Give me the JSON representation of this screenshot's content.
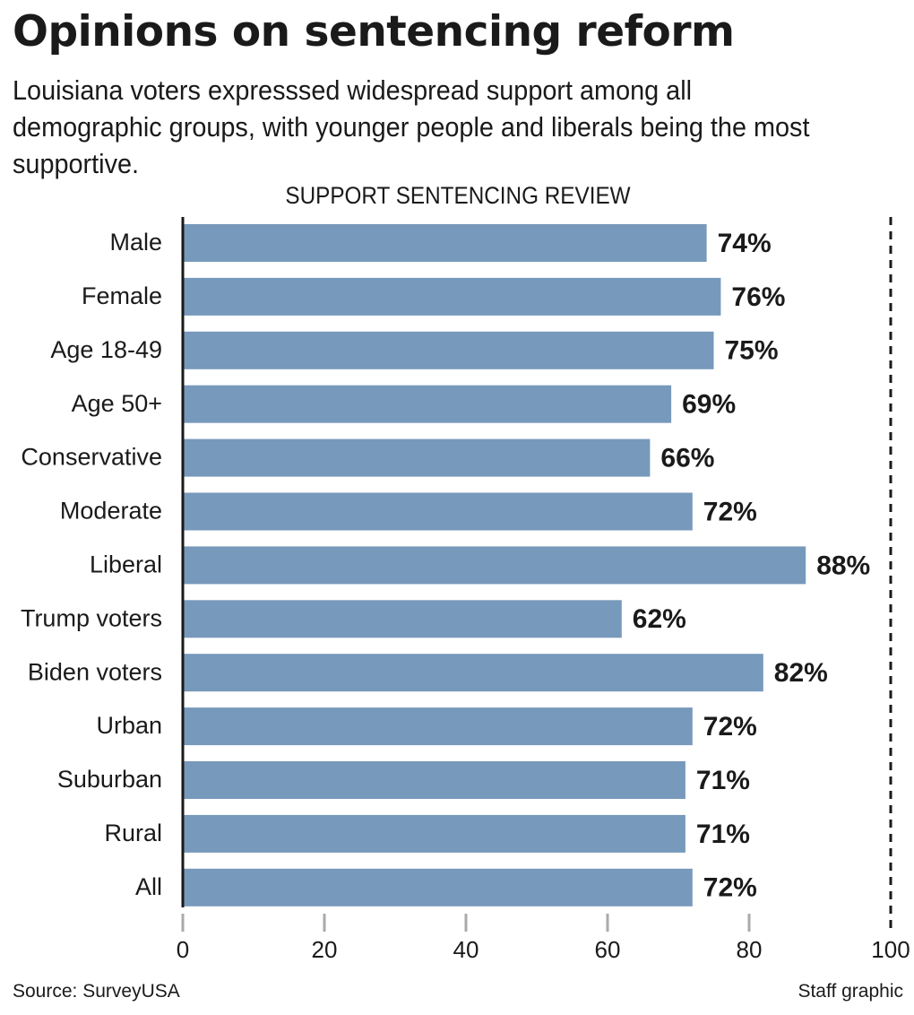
{
  "title": "Opinions on sentencing reform",
  "subtitle": "Louisiana voters expresssed widespread support among all demographic groups, with younger people and liberals being the most supportive.",
  "source": "Source: SurveyUSA",
  "credit": "Staff graphic",
  "colors": {
    "bar": "#7799bb",
    "text": "#1a1a1a",
    "axis": "#1a1a1a",
    "tick": "#aaaaaa"
  },
  "chart_data": {
    "type": "bar",
    "orientation": "horizontal",
    "title": "SUPPORT SENTENCING REVIEW",
    "categories": [
      "Male",
      "Female",
      "Age 18-49",
      "Age 50+",
      "Conservative",
      "Moderate",
      "Liberal",
      "Trump voters",
      "Biden voters",
      "Urban",
      "Suburban",
      "Rural",
      "All"
    ],
    "values": [
      74,
      76,
      75,
      69,
      66,
      72,
      88,
      62,
      82,
      72,
      71,
      71,
      72
    ],
    "value_labels": [
      "74%",
      "76%",
      "75%",
      "69%",
      "66%",
      "72%",
      "88%",
      "62%",
      "82%",
      "72%",
      "71%",
      "71%",
      "72%"
    ],
    "xlim": [
      0,
      100
    ],
    "xticks": [
      0,
      20,
      40,
      60,
      80,
      100
    ],
    "xtick_labels": [
      "0",
      "20",
      "40",
      "60",
      "80",
      "100"
    ],
    "xlabel": "",
    "ylabel": "",
    "grid": false,
    "legend": "none"
  }
}
